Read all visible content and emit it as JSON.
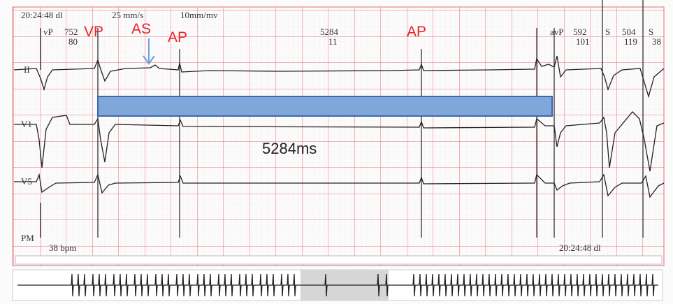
{
  "header": {
    "time": "20:24:48 dl",
    "speed": "25 mm/s",
    "gain": "10mm/mv"
  },
  "markers": [
    {
      "label": "vP",
      "values": [
        "752",
        "80"
      ]
    },
    {
      "label": "avP",
      "values": [
        "592",
        "101"
      ]
    },
    {
      "label": "S",
      "values": [
        "504",
        "119"
      ]
    },
    {
      "label": "S",
      "values": [
        "38"
      ]
    }
  ],
  "mid_interval": [
    "5284",
    "11"
  ],
  "annotations": [
    "VP",
    "AS",
    "AP",
    "AP"
  ],
  "measurement": "5284ms",
  "leads": [
    "II",
    "V1",
    "V5"
  ],
  "footer": {
    "mode": "PM",
    "rate": "38 bpm",
    "time": "20:24:48 dl"
  }
}
